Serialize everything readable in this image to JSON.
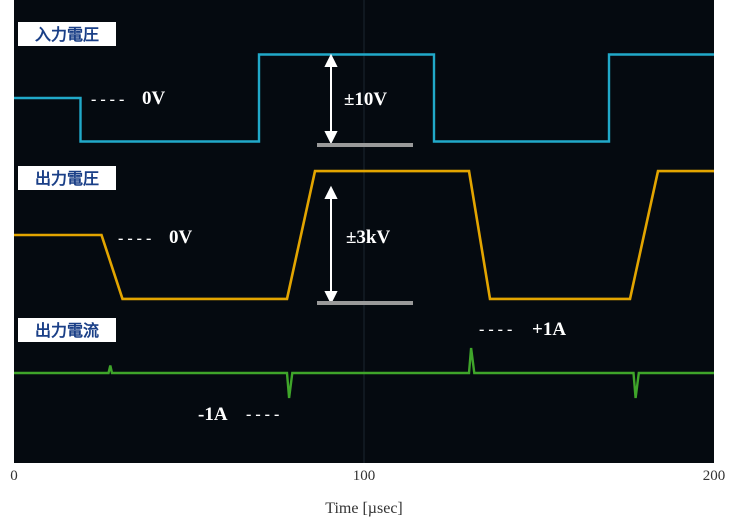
{
  "chart_data": {
    "type": "line",
    "xlabel": "Time [µsec]",
    "x_ticks": [
      "0",
      "100",
      "200"
    ],
    "xlim": [
      0,
      200
    ],
    "series": [
      {
        "name": "入力電圧",
        "color": "#21a9c9",
        "zero_label": "0V",
        "amplitude_label": "±10V",
        "points": [
          [
            0,
            0
          ],
          [
            19,
            0
          ],
          [
            19,
            -10
          ],
          [
            70,
            -10
          ],
          [
            70,
            10
          ],
          [
            120,
            10
          ],
          [
            120,
            -10
          ],
          [
            170,
            -10
          ],
          [
            170,
            10
          ],
          [
            200,
            10
          ]
        ]
      },
      {
        "name": "出力電圧",
        "color": "#e3a500",
        "zero_label": "0V",
        "amplitude_label": "±3kV",
        "points": [
          [
            0,
            0
          ],
          [
            25,
            0
          ],
          [
            31,
            -3
          ],
          [
            78,
            -3
          ],
          [
            86,
            3
          ],
          [
            130,
            3
          ],
          [
            136,
            -3
          ],
          [
            176,
            -3
          ],
          [
            184,
            3
          ],
          [
            200,
            3
          ]
        ]
      },
      {
        "name": "出力電流",
        "color": "#3fa52a",
        "pos_label": "+1A",
        "neg_label": "-1A",
        "points": [
          [
            0,
            0
          ],
          [
            27,
            0
          ],
          [
            27.5,
            0.3
          ],
          [
            28,
            0
          ],
          [
            78,
            0
          ],
          [
            78.6,
            -1
          ],
          [
            79.5,
            0
          ],
          [
            130,
            0
          ],
          [
            130.6,
            1
          ],
          [
            131.5,
            0
          ],
          [
            177,
            0
          ],
          [
            177.6,
            -1
          ],
          [
            178.5,
            0
          ],
          [
            200,
            0
          ]
        ]
      }
    ]
  }
}
